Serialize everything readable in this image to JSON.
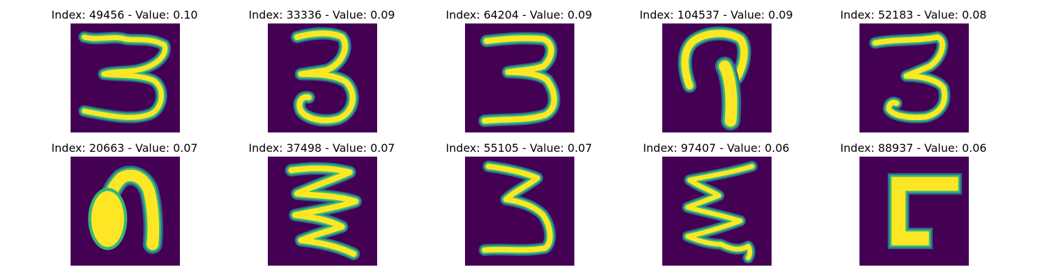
{
  "colors": {
    "background": "#440154",
    "low": "#30688e",
    "mid": "#35b779",
    "high": "#fde725"
  },
  "panels": [
    {
      "title": "Index: 49456 - Value: 0.10"
    },
    {
      "title": "Index: 33336 - Value: 0.09"
    },
    {
      "title": "Index: 64204 - Value: 0.09"
    },
    {
      "title": "Index: 104537 - Value: 0.09"
    },
    {
      "title": "Index: 52183 - Value: 0.08"
    },
    {
      "title": "Index: 20663 - Value: 0.07"
    },
    {
      "title": "Index: 37498 - Value: 0.07"
    },
    {
      "title": "Index: 55105 - Value: 0.07"
    },
    {
      "title": "Index: 97407 - Value: 0.06"
    },
    {
      "title": "Index: 88937 - Value: 0.06"
    }
  ]
}
